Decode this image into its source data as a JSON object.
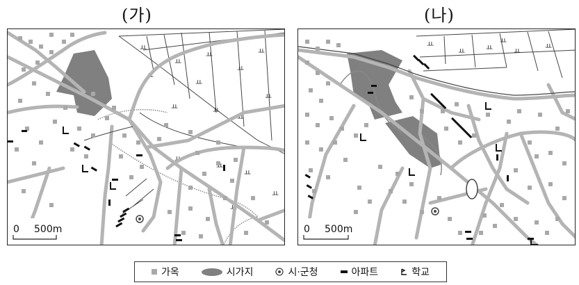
{
  "maps": [
    {
      "title": "(가)",
      "scale_zero": "0",
      "scale_distance": "500m"
    },
    {
      "title": "(나)",
      "scale_zero": "0",
      "scale_distance": "500m"
    }
  ],
  "legend": {
    "house": "가옥",
    "urban_area": "시가지",
    "city_hall": "시·군청",
    "apartment": "아파트",
    "school": "학교"
  },
  "colors": {
    "road": "#b4b4b4",
    "house": "#a8a8a8",
    "urban_area": "#808080",
    "railway": "#888888",
    "apartment": "#111111"
  },
  "icons": {
    "field_symbol": "ㅛ",
    "school_symbol": "flag-school-icon",
    "city_hall_symbol": "double-circle-icon"
  }
}
